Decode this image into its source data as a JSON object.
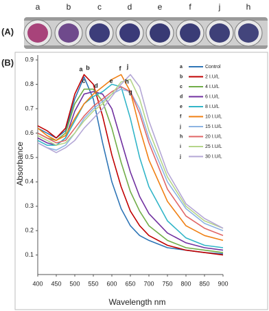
{
  "panel_a": {
    "label": "(A)",
    "well_labels": [
      "a",
      "b",
      "c",
      "d",
      "e",
      "f",
      "j",
      "h"
    ]
  },
  "panel_b": {
    "label": "(B)"
  },
  "chart_data": {
    "type": "line",
    "x_label": "Wavelength nm",
    "y_label": "Absorbance",
    "x": [
      400,
      425,
      450,
      475,
      500,
      525,
      550,
      575,
      600,
      625,
      650,
      675,
      700,
      750,
      800,
      850,
      900
    ],
    "xlim": [
      400,
      900
    ],
    "xticks": [
      400,
      450,
      500,
      550,
      600,
      650,
      700,
      750,
      800,
      850,
      900
    ],
    "ylim": [
      0.02,
      0.92
    ],
    "yticks": [
      0.1,
      0.2,
      0.3,
      0.4,
      0.5,
      0.6,
      0.7,
      0.8,
      0.9
    ],
    "grid": false,
    "series": [
      {
        "letter": "a",
        "name": "Control",
        "color": "#2e75b6",
        "values": [
          0.62,
          0.6,
          0.58,
          0.61,
          0.74,
          0.83,
          0.74,
          0.56,
          0.4,
          0.29,
          0.22,
          0.18,
          0.16,
          0.13,
          0.12,
          0.11,
          0.105
        ]
      },
      {
        "letter": "b",
        "name": "2 I.U/L",
        "color": "#c00000",
        "values": [
          0.63,
          0.61,
          0.58,
          0.62,
          0.76,
          0.84,
          0.8,
          0.67,
          0.51,
          0.38,
          0.28,
          0.22,
          0.18,
          0.14,
          0.12,
          0.11,
          0.1
        ]
      },
      {
        "letter": "c",
        "name": "4 I.U/L",
        "color": "#70ad47",
        "values": [
          0.6,
          0.58,
          0.57,
          0.6,
          0.72,
          0.78,
          0.78,
          0.73,
          0.62,
          0.48,
          0.36,
          0.28,
          0.22,
          0.16,
          0.13,
          0.12,
          0.11
        ]
      },
      {
        "letter": "d",
        "name": "6 I.U/L",
        "color": "#7030a0",
        "values": [
          0.58,
          0.56,
          0.55,
          0.58,
          0.69,
          0.76,
          0.77,
          0.76,
          0.7,
          0.57,
          0.44,
          0.34,
          0.27,
          0.19,
          0.15,
          0.13,
          0.12
        ]
      },
      {
        "letter": "e",
        "name": "8 I.U/L",
        "color": "#31b5c8",
        "values": [
          0.57,
          0.55,
          0.55,
          0.58,
          0.65,
          0.72,
          0.75,
          0.77,
          0.8,
          0.79,
          0.66,
          0.5,
          0.38,
          0.24,
          0.17,
          0.14,
          0.13
        ]
      },
      {
        "letter": "f",
        "name": "10 I.U/L",
        "color": "#f07f12",
        "values": [
          0.62,
          0.59,
          0.57,
          0.59,
          0.66,
          0.72,
          0.76,
          0.79,
          0.82,
          0.84,
          0.77,
          0.62,
          0.49,
          0.32,
          0.22,
          0.18,
          0.16
        ]
      },
      {
        "letter": "j",
        "name": "15 I.U/L",
        "color": "#8db4e2",
        "values": [
          0.56,
          0.54,
          0.53,
          0.55,
          0.6,
          0.66,
          0.7,
          0.73,
          0.76,
          0.78,
          0.77,
          0.7,
          0.58,
          0.4,
          0.29,
          0.23,
          0.2
        ]
      },
      {
        "letter": "h",
        "name": "20 I.U/L",
        "color": "#e06666",
        "values": [
          0.6,
          0.58,
          0.56,
          0.57,
          0.62,
          0.67,
          0.71,
          0.74,
          0.77,
          0.79,
          0.77,
          0.68,
          0.56,
          0.37,
          0.26,
          0.21,
          0.18
        ]
      },
      {
        "letter": "i",
        "name": "25 I.U/L",
        "color": "#b5d58a",
        "values": [
          0.59,
          0.57,
          0.55,
          0.56,
          0.6,
          0.65,
          0.69,
          0.72,
          0.76,
          0.81,
          0.82,
          0.74,
          0.61,
          0.42,
          0.3,
          0.24,
          0.21
        ]
      },
      {
        "letter": "j",
        "name": "30 I.U/L",
        "color": "#b4a7d6",
        "values": [
          0.56,
          0.54,
          0.52,
          0.54,
          0.57,
          0.62,
          0.66,
          0.7,
          0.75,
          0.8,
          0.84,
          0.79,
          0.65,
          0.44,
          0.31,
          0.25,
          0.21
        ]
      }
    ],
    "annotations": [
      "a",
      "b",
      "c",
      "d",
      "e",
      "f",
      "j",
      "h",
      "g"
    ]
  }
}
